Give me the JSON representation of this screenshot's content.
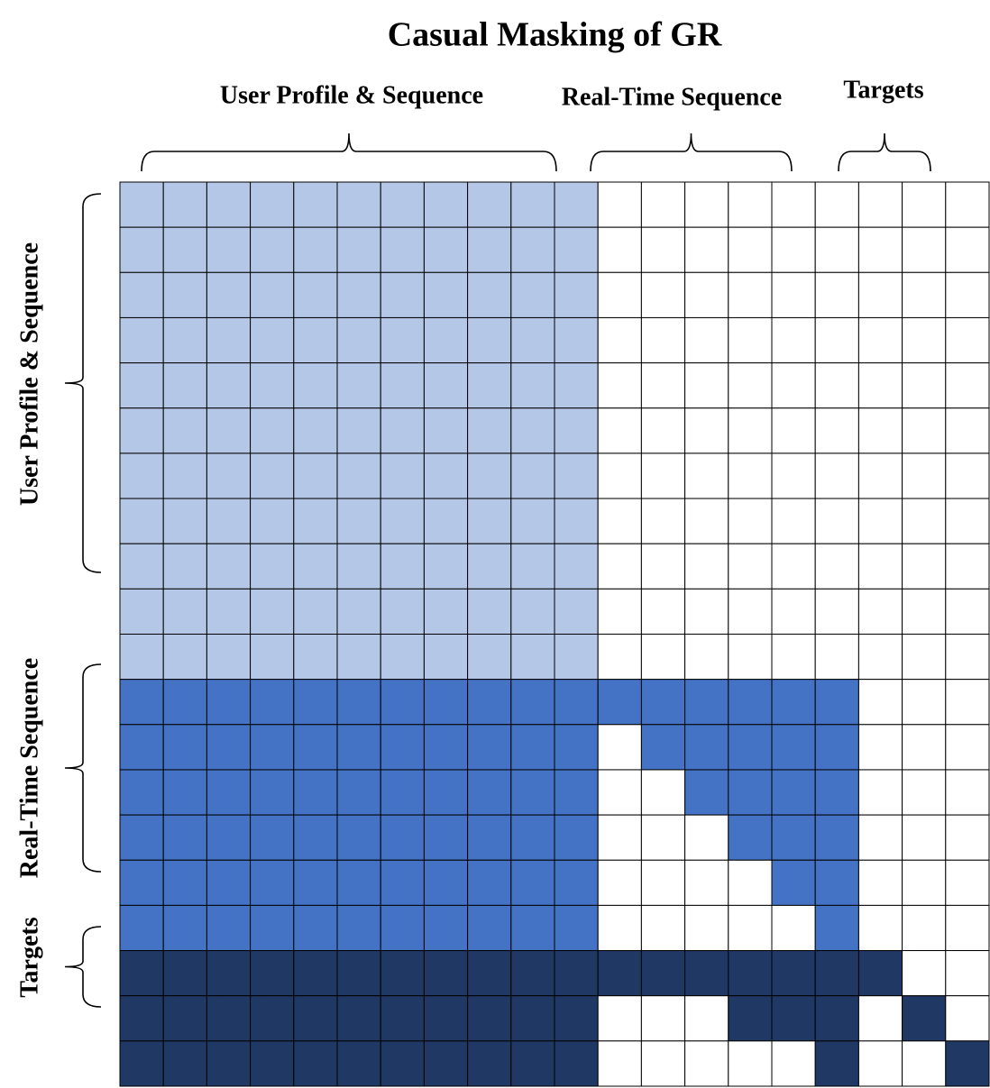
{
  "title": "Casual Masking of GR",
  "column_groups": [
    "User Profile & Sequence",
    "Real-Time Sequence",
    "Targets"
  ],
  "row_groups": [
    "User Profile & Sequence",
    "Real-Time Sequence",
    "Targets"
  ]
}
